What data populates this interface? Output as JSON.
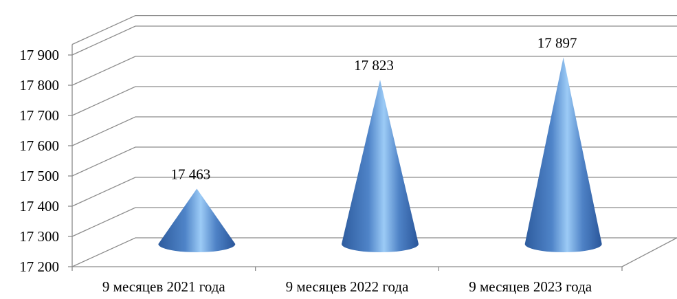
{
  "chart_data": {
    "type": "bar",
    "shape": "cone",
    "three_d": true,
    "categories": [
      "9 месяцев 2021 года",
      "9 месяцев 2022 года",
      "9 месяцев 2023 года"
    ],
    "values": [
      17463,
      17823,
      17897
    ],
    "data_labels": [
      "17 463",
      "17 823",
      "17 897"
    ],
    "y_tick_labels": [
      "17 200",
      "17 300",
      "17 400",
      "17 500",
      "17 600",
      "17 700",
      "17 800",
      "17 900"
    ],
    "ylim": [
      17200,
      17900
    ],
    "y_step": 100,
    "grid": true,
    "legend": "none",
    "title": "",
    "xlabel": "",
    "ylabel": "",
    "colors": {
      "cone_light": "#9cc8f4",
      "cone_mid": "#5b8fd0",
      "cone_dark": "#2b5aa0",
      "grid": "#8c8c8c"
    }
  }
}
